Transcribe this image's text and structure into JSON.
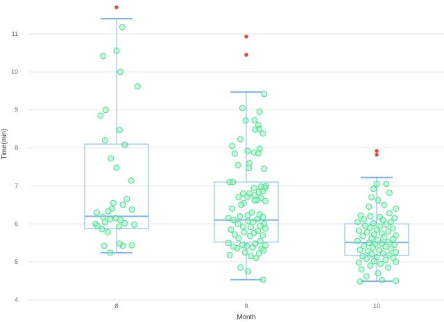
{
  "chart_data": {
    "type": "boxplot",
    "xlabel": "Month",
    "ylabel": "Time(min)",
    "ylim": [
      4,
      11.5
    ],
    "yticks": [
      4,
      5,
      6,
      7,
      8,
      9,
      10,
      11
    ],
    "grid": true,
    "colors": {
      "box": "#7cb5ec",
      "points": "#3ee08f",
      "outliers": "#e04848"
    },
    "categories": [
      "8",
      "9",
      "10"
    ],
    "boxes": [
      {
        "category": "8",
        "low": 5.24,
        "q1": 5.88,
        "median": 6.2,
        "q3": 8.1,
        "high": 11.4
      },
      {
        "category": "9",
        "low": 4.53,
        "q1": 5.52,
        "median": 6.1,
        "q3": 7.1,
        "high": 9.47
      },
      {
        "category": "10",
        "low": 4.49,
        "q1": 5.17,
        "median": 5.51,
        "q3": 6.0,
        "high": 7.22
      }
    ],
    "outliers": [
      {
        "category": "8",
        "y": 11.7
      },
      {
        "category": "9",
        "y": 10.93
      },
      {
        "category": "9",
        "y": 10.45
      },
      {
        "category": "10",
        "y": 7.92
      },
      {
        "category": "10",
        "y": 7.82
      }
    ],
    "scatter": [
      {
        "category": "8",
        "points": [
          [
            0.09,
            11.18
          ],
          [
            -0.21,
            10.42
          ],
          [
            0.0,
            10.56
          ],
          [
            0.06,
            10.0
          ],
          [
            0.33,
            9.62
          ],
          [
            -0.17,
            9.0
          ],
          [
            -0.25,
            8.85
          ],
          [
            0.05,
            8.47
          ],
          [
            -0.18,
            8.2
          ],
          [
            0.13,
            8.08
          ],
          [
            -0.09,
            7.72
          ],
          [
            0.0,
            7.48
          ],
          [
            0.23,
            7.14
          ],
          [
            0.16,
            6.65
          ],
          [
            0.1,
            6.5
          ],
          [
            -0.05,
            6.55
          ],
          [
            0.24,
            6.38
          ],
          [
            -0.07,
            6.4
          ],
          [
            -0.13,
            6.33
          ],
          [
            -0.31,
            6.3
          ],
          [
            -0.01,
            6.15
          ],
          [
            -0.21,
            6.18
          ],
          [
            0.06,
            6.1
          ],
          [
            -0.1,
            6.12
          ],
          [
            0.13,
            6.02
          ],
          [
            -0.18,
            6.04
          ],
          [
            -0.33,
            6.0
          ],
          [
            0.28,
            5.98
          ],
          [
            -0.3,
            5.95
          ],
          [
            0.04,
            5.93
          ],
          [
            -0.23,
            5.86
          ],
          [
            -0.14,
            5.78
          ],
          [
            -0.19,
            5.42
          ],
          [
            0.1,
            5.42
          ],
          [
            0.24,
            5.44
          ],
          [
            0.05,
            5.48
          ],
          [
            -0.1,
            5.24
          ]
        ]
      },
      {
        "category": "9",
        "points": [
          [
            0.28,
            9.42
          ],
          [
            -0.06,
            9.05
          ],
          [
            0.21,
            8.95
          ],
          [
            0.13,
            8.73
          ],
          [
            -0.01,
            8.72
          ],
          [
            0.19,
            8.6
          ],
          [
            0.2,
            8.5
          ],
          [
            0.14,
            8.48
          ],
          [
            0.26,
            8.38
          ],
          [
            -0.09,
            8.23
          ],
          [
            -0.22,
            8.05
          ],
          [
            0.21,
            7.98
          ],
          [
            0.02,
            7.92
          ],
          [
            0.12,
            7.88
          ],
          [
            0.19,
            7.86
          ],
          [
            -0.18,
            7.85
          ],
          [
            0.05,
            7.6
          ],
          [
            -0.13,
            7.55
          ],
          [
            0.04,
            7.47
          ],
          [
            0.28,
            7.45
          ],
          [
            -0.26,
            7.1
          ],
          [
            -0.21,
            7.1
          ],
          [
            0.31,
            7.0
          ],
          [
            0.23,
            6.98
          ],
          [
            0.29,
            6.95
          ],
          [
            0.12,
            6.94
          ],
          [
            0.26,
            6.86
          ],
          [
            0.2,
            6.84
          ],
          [
            0.05,
            6.8
          ],
          [
            -0.05,
            6.8
          ],
          [
            0.13,
            6.75
          ],
          [
            0.02,
            6.71
          ],
          [
            0.23,
            6.68
          ],
          [
            -0.12,
            6.7
          ],
          [
            0.17,
            6.63
          ],
          [
            0.13,
            6.62
          ],
          [
            0.3,
            6.6
          ],
          [
            -0.04,
            6.55
          ],
          [
            -0.08,
            6.5
          ],
          [
            -0.22,
            6.4
          ],
          [
            0.09,
            6.3
          ],
          [
            0.21,
            6.25
          ],
          [
            0.02,
            6.22
          ],
          [
            -0.1,
            6.2
          ],
          [
            0.26,
            6.18
          ],
          [
            -0.28,
            6.15
          ],
          [
            0.17,
            6.12
          ],
          [
            -0.2,
            6.1
          ],
          [
            0.03,
            6.08
          ],
          [
            0.11,
            6.05
          ],
          [
            -0.13,
            6.0
          ],
          [
            0.28,
            6.0
          ],
          [
            0.22,
            5.95
          ],
          [
            -0.05,
            5.93
          ],
          [
            0.07,
            5.92
          ],
          [
            0.3,
            5.88
          ],
          [
            -0.24,
            5.85
          ],
          [
            0.18,
            5.82
          ],
          [
            -0.03,
            5.78
          ],
          [
            0.12,
            5.76
          ],
          [
            -0.18,
            5.72
          ],
          [
            0.26,
            5.7
          ],
          [
            0.06,
            5.68
          ],
          [
            -0.12,
            5.62
          ],
          [
            0.22,
            5.55
          ],
          [
            -0.28,
            5.5
          ],
          [
            0.14,
            5.48
          ],
          [
            -0.06,
            5.45
          ],
          [
            0.3,
            5.44
          ],
          [
            0.01,
            5.42
          ],
          [
            -0.2,
            5.4
          ],
          [
            0.1,
            5.38
          ],
          [
            -0.14,
            5.36
          ],
          [
            0.24,
            5.35
          ],
          [
            0.27,
            5.3
          ],
          [
            -0.02,
            5.25
          ],
          [
            0.2,
            5.22
          ],
          [
            -0.26,
            5.18
          ],
          [
            0.07,
            5.15
          ],
          [
            0.15,
            5.1
          ],
          [
            -0.09,
            4.85
          ],
          [
            0.03,
            4.75
          ],
          [
            0.26,
            4.53
          ]
        ]
      },
      {
        "category": "10",
        "points": [
          [
            0.0,
            7.05
          ],
          [
            0.15,
            7.05
          ],
          [
            -0.05,
            6.92
          ],
          [
            0.2,
            6.82
          ],
          [
            -0.08,
            6.7
          ],
          [
            0.02,
            6.62
          ],
          [
            0.12,
            6.5
          ],
          [
            -0.12,
            6.45
          ],
          [
            0.3,
            6.4
          ],
          [
            0.2,
            6.28
          ],
          [
            -0.25,
            6.22
          ],
          [
            -0.1,
            6.2
          ],
          [
            0.05,
            6.18
          ],
          [
            0.28,
            6.15
          ],
          [
            -0.2,
            6.12
          ],
          [
            0.1,
            6.1
          ],
          [
            -0.3,
            6.05
          ],
          [
            0.22,
            6.05
          ],
          [
            -0.05,
            6.02
          ],
          [
            0.15,
            5.98
          ],
          [
            -0.18,
            5.95
          ],
          [
            0.05,
            5.93
          ],
          [
            -0.1,
            5.9
          ],
          [
            0.25,
            5.88
          ],
          [
            0.0,
            5.85
          ],
          [
            -0.28,
            5.82
          ],
          [
            0.18,
            5.8
          ],
          [
            -0.15,
            5.78
          ],
          [
            0.08,
            5.75
          ],
          [
            -0.04,
            5.72
          ],
          [
            0.3,
            5.7
          ],
          [
            -0.22,
            5.68
          ],
          [
            0.12,
            5.65
          ],
          [
            -0.08,
            5.62
          ],
          [
            0.26,
            5.6
          ],
          [
            0.02,
            5.58
          ],
          [
            -0.3,
            5.55
          ],
          [
            0.18,
            5.52
          ],
          [
            -0.12,
            5.5
          ],
          [
            0.08,
            5.48
          ],
          [
            -0.02,
            5.46
          ],
          [
            0.28,
            5.45
          ],
          [
            -0.2,
            5.42
          ],
          [
            0.14,
            5.4
          ],
          [
            -0.06,
            5.38
          ],
          [
            0.22,
            5.35
          ],
          [
            -0.26,
            5.32
          ],
          [
            0.04,
            5.3
          ],
          [
            -0.14,
            5.28
          ],
          [
            0.3,
            5.25
          ],
          [
            0.1,
            5.22
          ],
          [
            -0.08,
            5.2
          ],
          [
            0.2,
            5.18
          ],
          [
            -0.22,
            5.15
          ],
          [
            0.0,
            5.12
          ],
          [
            0.26,
            5.1
          ],
          [
            -0.16,
            5.08
          ],
          [
            0.14,
            5.05
          ],
          [
            -0.04,
            5.02
          ],
          [
            0.3,
            5.0
          ],
          [
            -0.28,
            4.98
          ],
          [
            0.06,
            4.95
          ],
          [
            -0.1,
            4.9
          ],
          [
            0.18,
            4.85
          ],
          [
            -0.24,
            4.8
          ],
          [
            0.02,
            4.7
          ],
          [
            -0.16,
            4.62
          ],
          [
            0.08,
            4.52
          ],
          [
            -0.26,
            4.48
          ],
          [
            0.3,
            4.5
          ]
        ]
      }
    ]
  }
}
